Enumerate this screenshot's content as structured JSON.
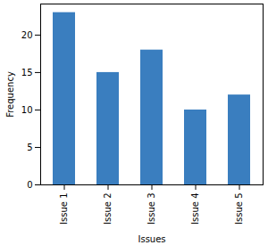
{
  "chart_data": {
    "type": "bar",
    "categories": [
      "Issue 1",
      "Issue 2",
      "Issue 3",
      "Issue 4",
      "Issue 5"
    ],
    "values": [
      23,
      15,
      18,
      10,
      12
    ],
    "color": "#3a7ebf",
    "x_label": "Issues",
    "y_label": "Frequency",
    "ylim": [
      0,
      24.15
    ],
    "yticks": [
      0,
      5,
      10,
      15,
      20
    ],
    "grid": false
  }
}
